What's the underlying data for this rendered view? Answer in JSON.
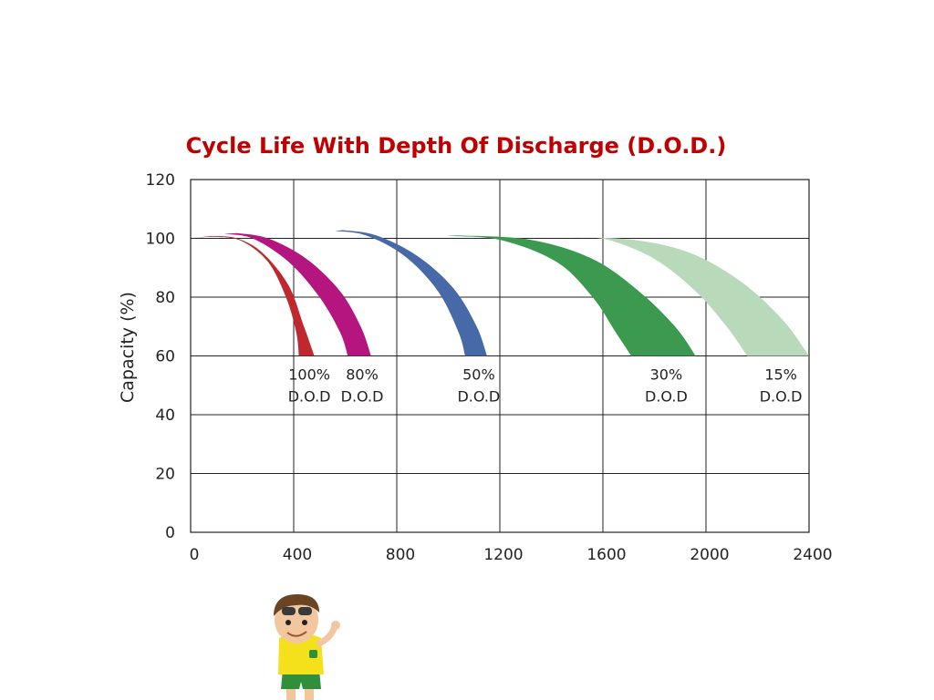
{
  "chart_data": {
    "type": "area",
    "title": "Cycle Life With Depth Of Discharge (D.O.D.)",
    "xlabel": "",
    "ylabel": "Capacity (%)",
    "xlim": [
      0,
      2400
    ],
    "ylim": [
      0,
      120
    ],
    "x_ticks": [
      0,
      400,
      800,
      1200,
      1600,
      2000,
      2400
    ],
    "y_ticks": [
      0,
      20,
      40,
      60,
      80,
      100,
      120
    ],
    "grid": true,
    "series": [
      {
        "label": [
          "100%",
          "D.O.D"
        ],
        "color": "#c0282f",
        "inner": [
          [
            0,
            100
          ],
          [
            100,
            100.5
          ],
          [
            200,
            99
          ],
          [
            300,
            92
          ],
          [
            370,
            80
          ],
          [
            410,
            68
          ],
          [
            420,
            60
          ]
        ],
        "outer": [
          [
            80,
            100.8
          ],
          [
            180,
            100
          ],
          [
            280,
            95
          ],
          [
            380,
            84
          ],
          [
            440,
            70
          ],
          [
            480,
            60
          ]
        ]
      },
      {
        "label": [
          "80%",
          "D.O.D"
        ],
        "color": "#b5157f",
        "inner": [
          [
            130,
            101.5
          ],
          [
            240,
            100
          ],
          [
            380,
            92
          ],
          [
            500,
            80
          ],
          [
            580,
            68
          ],
          [
            610,
            60
          ]
        ],
        "outer": [
          [
            180,
            101.8
          ],
          [
            300,
            100
          ],
          [
            450,
            93
          ],
          [
            580,
            82
          ],
          [
            660,
            70
          ],
          [
            700,
            60
          ]
        ]
      },
      {
        "label": [
          "50%",
          "D.O.D"
        ],
        "color": "#4869a8",
        "inner": [
          [
            560,
            102.5
          ],
          [
            680,
            101
          ],
          [
            830,
            94
          ],
          [
            960,
            82
          ],
          [
            1040,
            68
          ],
          [
            1065,
            60
          ]
        ],
        "outer": [
          [
            590,
            102.8
          ],
          [
            720,
            101
          ],
          [
            880,
            94
          ],
          [
            1020,
            83
          ],
          [
            1110,
            70
          ],
          [
            1150,
            60
          ]
        ]
      },
      {
        "label": [
          "30%",
          "D.O.D"
        ],
        "color": "#3b9950",
        "inner": [
          [
            990,
            100.8
          ],
          [
            1200,
            99.5
          ],
          [
            1420,
            92
          ],
          [
            1560,
            80
          ],
          [
            1650,
            68
          ],
          [
            1710,
            60
          ]
        ],
        "outer": [
          [
            1040,
            101
          ],
          [
            1320,
            99.5
          ],
          [
            1560,
            93
          ],
          [
            1740,
            82
          ],
          [
            1880,
            70
          ],
          [
            1960,
            60
          ]
        ]
      },
      {
        "label": [
          "15%",
          "D.O.D"
        ],
        "color": "#b9d9bb",
        "inner": [
          [
            1480,
            100.2
          ],
          [
            1620,
            99.5
          ],
          [
            1800,
            93
          ],
          [
            1960,
            82
          ],
          [
            2080,
            70
          ],
          [
            2160,
            60
          ]
        ],
        "outer": [
          [
            1500,
            100.3
          ],
          [
            1720,
            99.5
          ],
          [
            1940,
            95
          ],
          [
            2140,
            85
          ],
          [
            2300,
            72
          ],
          [
            2400,
            60
          ]
        ]
      }
    ]
  }
}
